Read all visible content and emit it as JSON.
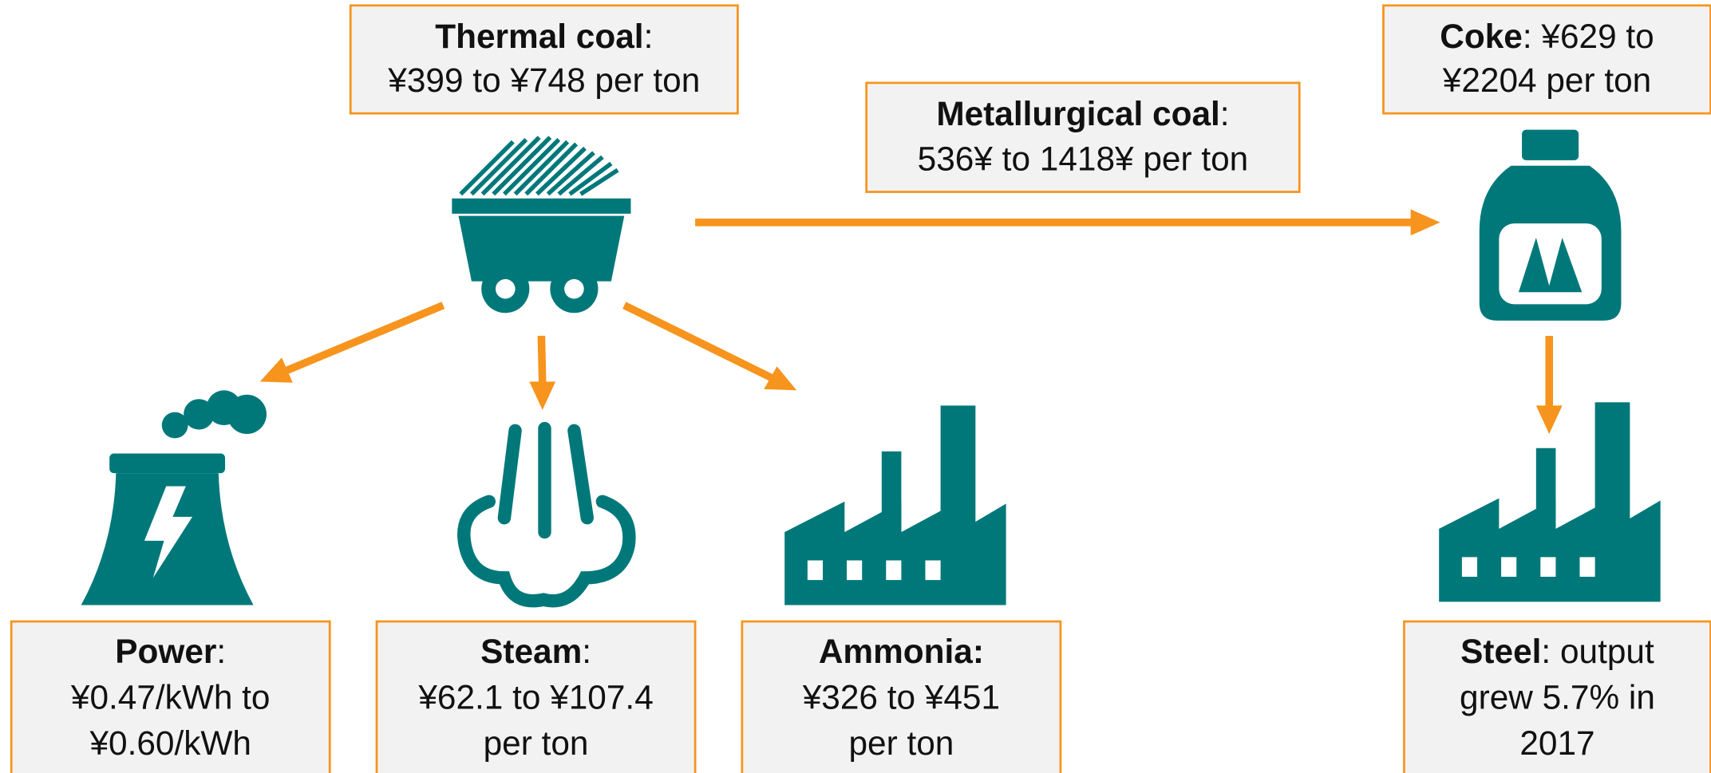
{
  "boxes": [
    {
      "lines": [
        [
          {
            "text": "Thermal coal",
            "bold": true
          },
          {
            "text": ":",
            "bold": false
          }
        ],
        [
          {
            "text": "¥399 to ¥748 per ton",
            "bold": false
          }
        ]
      ]
    },
    {
      "lines": [
        [
          {
            "text": "Metallurgical coal",
            "bold": true
          },
          {
            "text": ":",
            "bold": false
          }
        ],
        [
          {
            "text": "536¥ to 1418¥ per ton",
            "bold": false
          }
        ]
      ]
    },
    {
      "lines": [
        [
          {
            "text": "Coke",
            "bold": true
          },
          {
            "text": ": ¥629 to",
            "bold": false
          }
        ],
        [
          {
            "text": "¥2204 per ton",
            "bold": false
          }
        ]
      ]
    },
    {
      "lines": [
        [
          {
            "text": "Power",
            "bold": true
          },
          {
            "text": ":",
            "bold": false
          }
        ],
        [
          {
            "text": "¥0.47/kWh to",
            "bold": false
          }
        ],
        [
          {
            "text": "¥0.60/kWh",
            "bold": false
          }
        ]
      ]
    },
    {
      "lines": [
        [
          {
            "text": "Steam",
            "bold": true
          },
          {
            "text": ":",
            "bold": false
          }
        ],
        [
          {
            "text": "¥62.1 to ¥107.4",
            "bold": false
          }
        ],
        [
          {
            "text": "per ton",
            "bold": false
          }
        ]
      ]
    },
    {
      "lines": [
        [
          {
            "text": "Ammonia:",
            "bold": true
          }
        ],
        [
          {
            "text": "¥326 to ¥451",
            "bold": false
          }
        ],
        [
          {
            "text": "per ton",
            "bold": false
          }
        ]
      ]
    },
    {
      "lines": [
        [
          {
            "text": "Steel",
            "bold": true
          },
          {
            "text": ": output",
            "bold": false
          }
        ],
        [
          {
            "text": "grew 5.7% in",
            "bold": false
          }
        ],
        [
          {
            "text": "2017",
            "bold": false
          }
        ]
      ]
    }
  ]
}
